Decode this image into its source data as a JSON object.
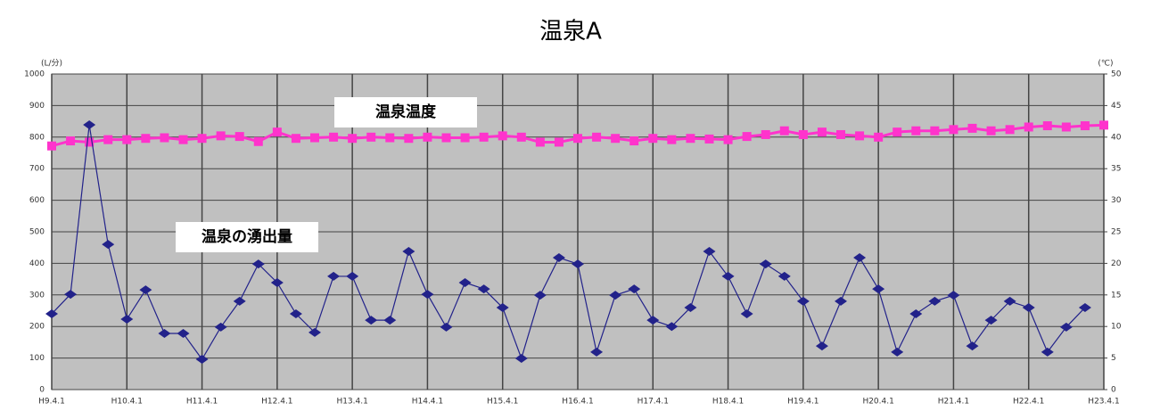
{
  "chart_data": {
    "type": "line",
    "title": "温泉A",
    "ylabel": "(L/分)",
    "y2label": "(℃)",
    "categories": [
      "H9.4.1",
      null,
      null,
      null,
      "H10.4.1",
      null,
      null,
      null,
      "H11.4.1",
      null,
      null,
      null,
      "H12.4.1",
      null,
      null,
      null,
      "H13.4.1",
      null,
      null,
      null,
      "H14.4.1",
      null,
      null,
      null,
      "H15.4.1",
      null,
      null,
      null,
      "H16.4.1",
      null,
      null,
      null,
      "H17.4.1",
      null,
      null,
      null,
      "H18.4.1",
      null,
      null,
      null,
      "H19.4.1",
      null,
      null,
      null,
      "H20.4.1",
      null,
      null,
      null,
      "H21.4.1",
      null,
      null,
      null,
      "H22.4.1",
      null,
      null,
      null,
      "H23.4.1"
    ],
    "ylim": [
      0,
      1000
    ],
    "yticks": [
      0,
      100,
      200,
      300,
      400,
      500,
      600,
      700,
      800,
      900,
      1000
    ],
    "y2lim": [
      0,
      50
    ],
    "y2ticks": [
      0,
      5,
      10,
      15,
      20,
      25,
      30,
      35,
      40,
      45,
      50
    ],
    "grid": true,
    "series": [
      {
        "name": "温泉温度",
        "color": "#ff33cc",
        "axis": "y2",
        "marker": "square",
        "values": [
          38.6,
          39.4,
          39.2,
          39.6,
          39.6,
          39.8,
          39.9,
          39.6,
          39.8,
          40.2,
          40.1,
          39.3,
          40.8,
          39.8,
          39.9,
          40.0,
          39.8,
          40.0,
          39.9,
          39.8,
          40.0,
          39.9,
          39.9,
          40.0,
          40.2,
          40.0,
          39.2,
          39.2,
          39.8,
          40.0,
          39.8,
          39.4,
          39.8,
          39.6,
          39.8,
          39.7,
          39.6,
          40.1,
          40.4,
          41.0,
          40.4,
          40.8,
          40.4,
          40.2,
          40.0,
          40.8,
          41.0,
          41.0,
          41.2,
          41.4,
          41.0,
          41.2,
          41.6,
          41.8,
          41.6,
          41.8,
          41.9
        ]
      },
      {
        "name": "温泉の湧出量",
        "color": "#22228a",
        "marker": "diamond",
        "values": [
          240,
          302,
          839,
          460,
          223,
          316,
          178,
          178,
          96,
          198,
          280,
          398,
          339,
          240,
          181,
          359,
          359,
          220,
          220,
          438,
          302,
          198,
          339,
          319,
          260,
          99,
          299,
          418,
          398,
          119,
          299,
          319,
          220,
          200,
          260,
          438,
          359,
          240,
          398,
          359,
          280,
          138,
          280,
          418,
          319,
          119,
          240,
          280,
          299,
          138,
          220,
          280,
          260,
          119,
          198,
          260,
          null
        ]
      }
    ]
  }
}
